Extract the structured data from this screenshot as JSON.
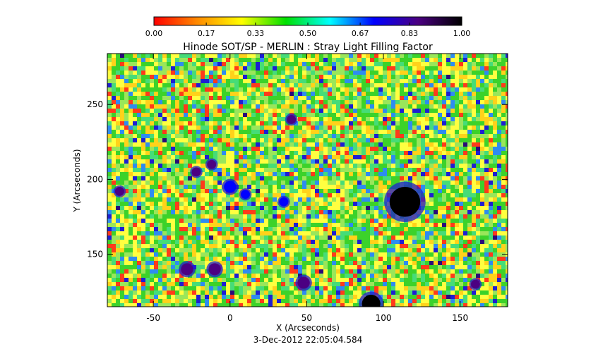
{
  "chart_data": {
    "type": "heatmap",
    "title": "Hinode SOT/SP - MERLIN : Stray Light Filling Factor",
    "xlabel": "X (Arcseconds)",
    "ylabel": "Y (Arcseconds)",
    "timestamp": "3-Dec-2012 22:05:04.584",
    "xlim": [
      -80,
      181
    ],
    "ylim": [
      115,
      284
    ],
    "x_ticks": [
      -50,
      0,
      50,
      100,
      150
    ],
    "x_tick_labels": [
      "-50",
      "0",
      "50",
      "100",
      "150"
    ],
    "y_ticks": [
      150,
      200,
      250
    ],
    "y_tick_labels": [
      "150",
      "200",
      "250"
    ],
    "colorbar": {
      "range": [
        0.0,
        1.0
      ],
      "ticks": [
        0.0,
        0.17,
        0.33,
        0.5,
        0.67,
        0.83,
        1.0
      ],
      "tick_labels": [
        "0.00",
        "0.17",
        "0.33",
        "0.50",
        "0.67",
        "0.83",
        "1.00"
      ],
      "colors": [
        "#ff0000",
        "#ff8c00",
        "#ffff00",
        "#00e000",
        "#00ffff",
        "#0000ff",
        "#4b0082",
        "#000000"
      ]
    },
    "field_colors": [
      "#ff3a1a",
      "#ffd21a",
      "#ffff40",
      "#9ae65a",
      "#3cd22a",
      "#46dc78",
      "#2e8cf0",
      "#1e1ed2",
      "#2a0a78"
    ],
    "features": [
      {
        "name": "sunspot",
        "x": 114,
        "y": 185,
        "radius_arcsec": 10,
        "value": 0.97
      },
      {
        "name": "high-fill patch",
        "x": -28,
        "y": 140,
        "radius_arcsec": 4,
        "value": 0.85
      },
      {
        "name": "high-fill patch",
        "x": -10,
        "y": 140,
        "radius_arcsec": 4,
        "value": 0.85
      },
      {
        "name": "high-fill patch",
        "x": 48,
        "y": 131,
        "radius_arcsec": 4,
        "value": 0.82
      },
      {
        "name": "high-fill patch",
        "x": 92,
        "y": 117,
        "radius_arcsec": 6,
        "value": 0.95
      },
      {
        "name": "high-fill patch",
        "x": -12,
        "y": 210,
        "radius_arcsec": 3,
        "value": 0.8
      },
      {
        "name": "high-fill patch",
        "x": -22,
        "y": 205,
        "radius_arcsec": 3,
        "value": 0.8
      },
      {
        "name": "high-fill patch",
        "x": 0,
        "y": 195,
        "radius_arcsec": 4,
        "value": 0.78
      },
      {
        "name": "high-fill patch",
        "x": 10,
        "y": 190,
        "radius_arcsec": 3,
        "value": 0.78
      },
      {
        "name": "high-fill patch",
        "x": -72,
        "y": 192,
        "radius_arcsec": 3,
        "value": 0.8
      },
      {
        "name": "high-fill patch",
        "x": 35,
        "y": 185,
        "radius_arcsec": 3,
        "value": 0.78
      },
      {
        "name": "high-fill patch",
        "x": 40,
        "y": 240,
        "radius_arcsec": 3,
        "value": 0.8
      },
      {
        "name": "high-fill patch",
        "x": 160,
        "y": 130,
        "radius_arcsec": 3,
        "value": 0.8
      }
    ]
  }
}
